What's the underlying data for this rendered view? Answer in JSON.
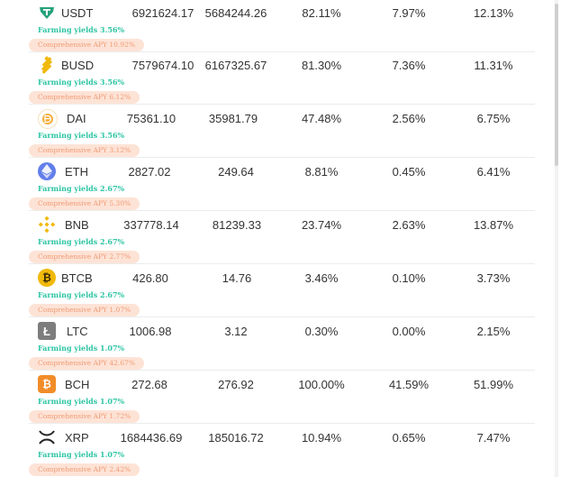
{
  "accent_colors": {
    "farming": "#2ec5a4",
    "apy_text": "#f19a74",
    "apy_bg": "#fde3d6"
  },
  "rows": [
    {
      "icon": "usdt-icon",
      "name": "USDT",
      "col1": "6921624.17",
      "col2": "5684244.26",
      "col3": "82.11%",
      "col4": "7.97%",
      "col5": "12.13%",
      "farming": "Farming yields 3.56%",
      "apy": "Comprehensive APY 10.92%"
    },
    {
      "icon": "busd-icon",
      "name": "BUSD",
      "col1": "7579674.10",
      "col2": "6167325.67",
      "col3": "81.30%",
      "col4": "7.36%",
      "col5": "11.31%",
      "farming": "Farming yields 3.56%",
      "apy": "Comprehensive APY 6.12%"
    },
    {
      "icon": "dai-icon",
      "name": "DAI",
      "col1": "75361.10",
      "col2": "35981.79",
      "col3": "47.48%",
      "col4": "2.56%",
      "col5": "6.75%",
      "farming": "Farming yields 3.56%",
      "apy": "Comprehensive APY 3.12%"
    },
    {
      "icon": "eth-icon",
      "name": "ETH",
      "col1": "2827.02",
      "col2": "249.64",
      "col3": "8.81%",
      "col4": "0.45%",
      "col5": "6.41%",
      "farming": "Farming yields 2.67%",
      "apy": "Comprehensive APY 5.30%"
    },
    {
      "icon": "bnb-icon",
      "name": "BNB",
      "col1": "337778.14",
      "col2": "81239.33",
      "col3": "23.74%",
      "col4": "2.63%",
      "col5": "13.87%",
      "farming": "Farming yields 2.67%",
      "apy": "Comprehensive APY 2.77%"
    },
    {
      "icon": "btcb-icon",
      "name": "BTCB",
      "col1": "426.80",
      "col2": "14.76",
      "col3": "3.46%",
      "col4": "0.10%",
      "col5": "3.73%",
      "farming": "Farming yields 2.67%",
      "apy": "Comprehensive APY 1.07%"
    },
    {
      "icon": "ltc-icon",
      "name": "LTC",
      "col1": "1006.98",
      "col2": "3.12",
      "col3": "0.30%",
      "col4": "0.00%",
      "col5": "2.15%",
      "farming": "Farming yields 1.07%",
      "apy": "Comprehensive APY 42.67%"
    },
    {
      "icon": "bch-icon",
      "name": "BCH",
      "col1": "272.68",
      "col2": "276.92",
      "col3": "100.00%",
      "col4": "41.59%",
      "col5": "51.99%",
      "farming": "Farming yields 1.07%",
      "apy": "Comprehensive APY 1.72%"
    },
    {
      "icon": "xrp-icon",
      "name": "XRP",
      "col1": "1684436.69",
      "col2": "185016.72",
      "col3": "10.94%",
      "col4": "0.65%",
      "col5": "7.47%",
      "farming": "Farming yields 1.07%",
      "apy": "Comprehensive APY 2.42%"
    }
  ]
}
